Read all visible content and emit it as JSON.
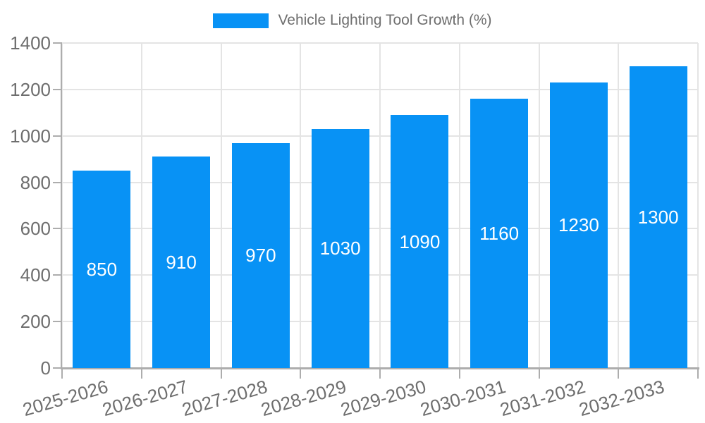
{
  "chart_data": {
    "type": "bar",
    "title": "Vehicle Lighting Tool Growth (%)",
    "categories": [
      "2025-2026",
      "2026-2027",
      "2027-2028",
      "2028-2029",
      "2029-2030",
      "2030-2031",
      "2031-2032",
      "2032-2033"
    ],
    "values": [
      850,
      910,
      970,
      1030,
      1090,
      1160,
      1230,
      1300
    ],
    "xlabel": "",
    "ylabel": "",
    "ylim": [
      0,
      1400
    ],
    "ytick_step": 200,
    "y_tick_labels": [
      "0",
      "200",
      "400",
      "600",
      "800",
      "1000",
      "1200",
      "1400"
    ],
    "grid": true,
    "legend_position": "top-center",
    "x_tick_rotation_deg": -16,
    "value_labels_inside_bars": true,
    "colors": {
      "bar": "#0892f5",
      "value_label": "#ffffff",
      "grid": "#e4e4e4",
      "axis": "#adadad",
      "tick_label": "#6e6e6e",
      "title": "#6e6e6e",
      "background": "#ffffff"
    }
  }
}
